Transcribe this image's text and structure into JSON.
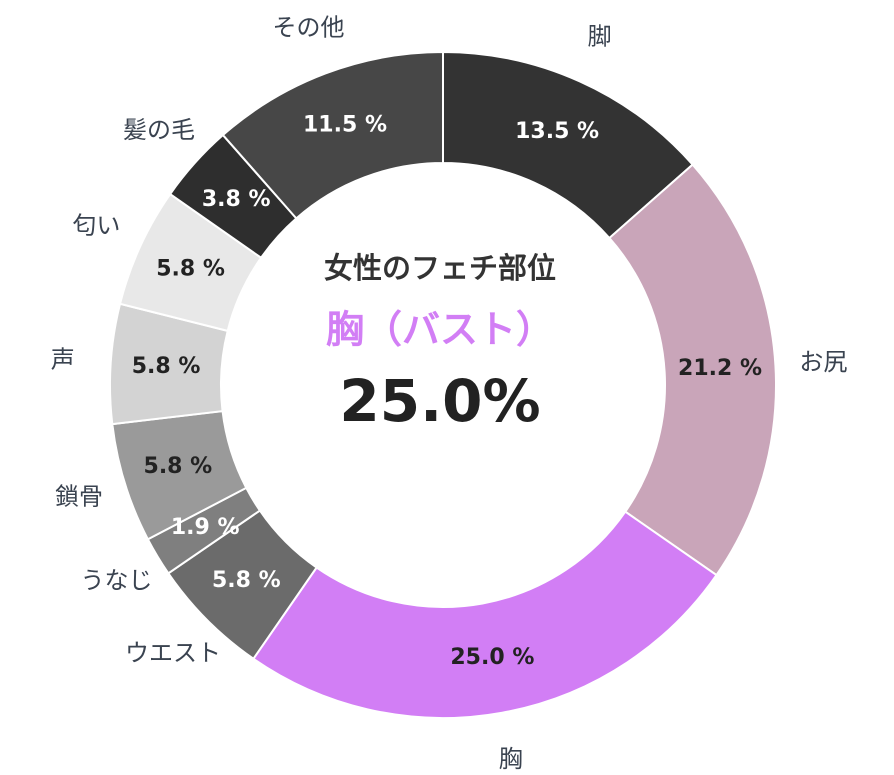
{
  "chart_data": {
    "type": "donut",
    "title": "女性のフェチ部位",
    "highlight_name": "胸（バスト）",
    "highlight_value": "25.0%",
    "categories": [
      "脚",
      "お尻",
      "胸",
      "ウエスト",
      "うなじ",
      "鎖骨",
      "声",
      "匂い",
      "髪の毛",
      "その他"
    ],
    "values": [
      13.5,
      21.2,
      25.0,
      5.8,
      1.9,
      5.8,
      5.8,
      5.8,
      3.8,
      11.5
    ],
    "value_labels": [
      "13.5 %",
      "21.2 %",
      "25.0 %",
      "5.8 %",
      "1.9 %",
      "5.8 %",
      "5.8 %",
      "5.8 %",
      "3.8 %",
      "11.5 %"
    ],
    "colors": [
      "#333333",
      "#c9a5b9",
      "#d27ef5",
      "#6b6b6b",
      "#7f7f7f",
      "#9a9a9a",
      "#d3d3d3",
      "#e8e8e8",
      "#2e2e2e",
      "#474747"
    ]
  }
}
